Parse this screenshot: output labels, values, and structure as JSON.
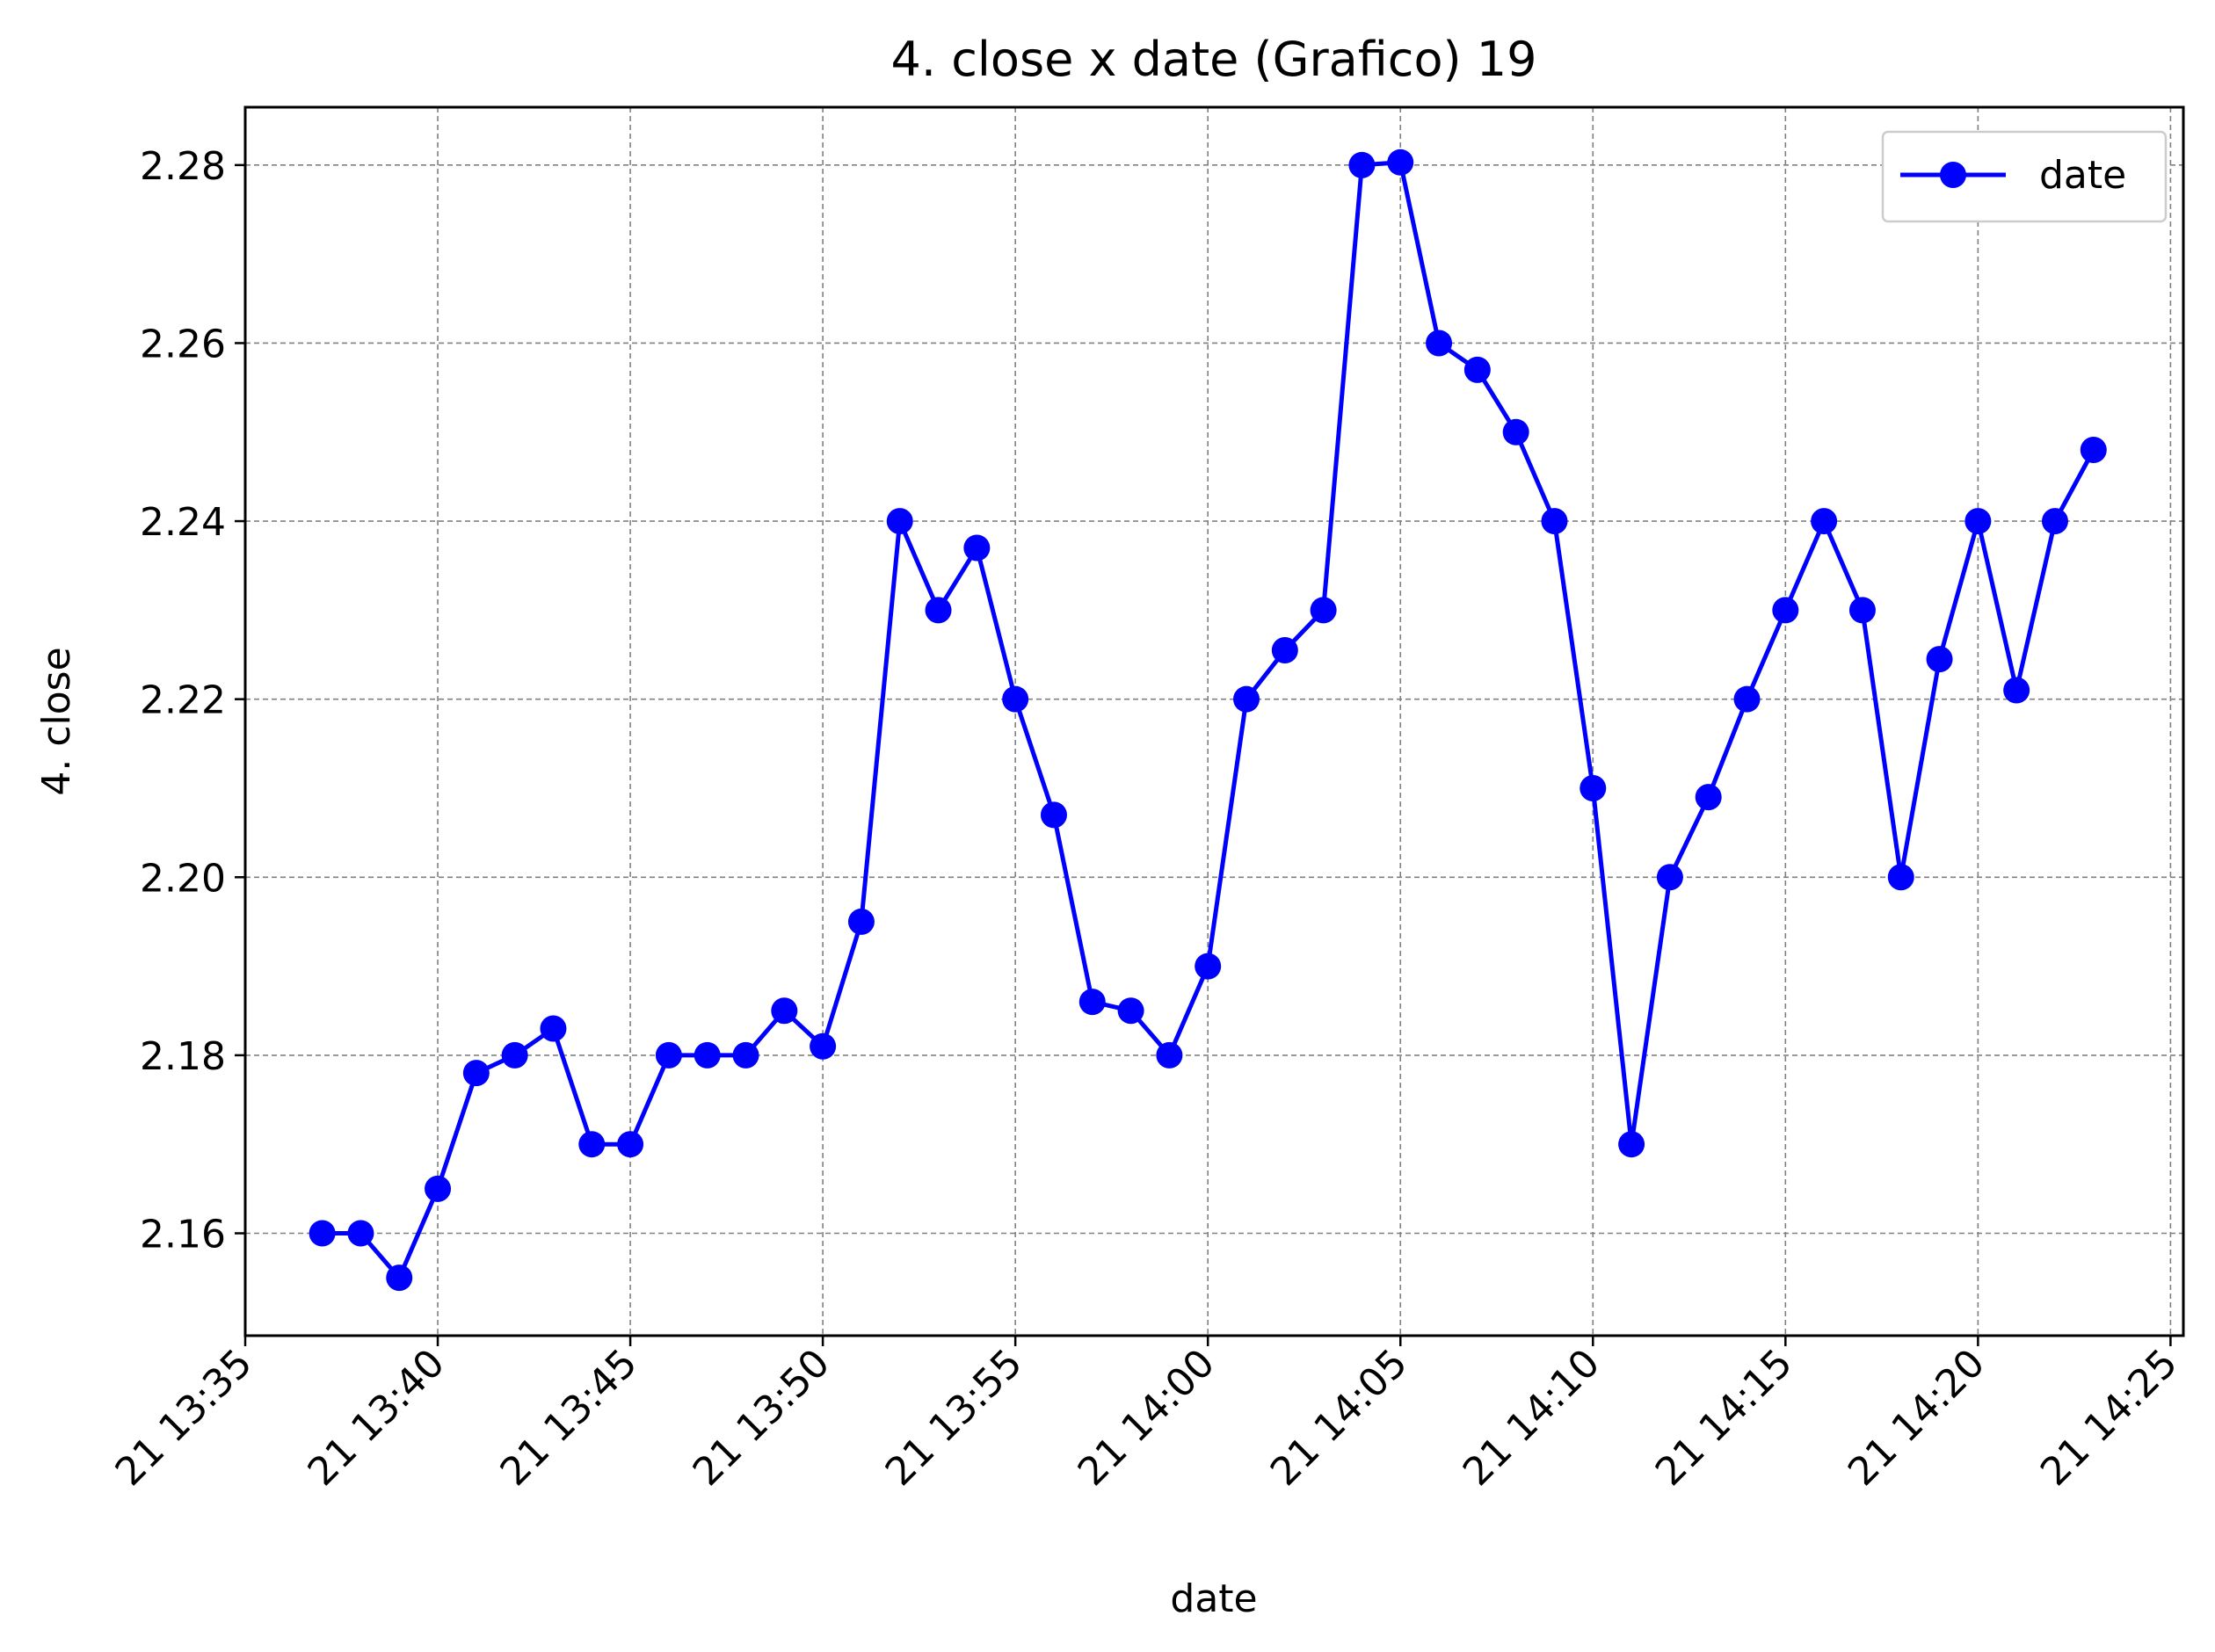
{
  "chart_data": {
    "type": "line",
    "title": "4. close x date (Grafico) 19",
    "xlabel": "date",
    "ylabel": "4. close",
    "x_ticks": [
      "21 13:35",
      "21 13:40",
      "21 13:45",
      "21 13:50",
      "21 13:55",
      "21 14:00",
      "21 14:05",
      "21 14:10",
      "21 14:15",
      "21 14:20",
      "21 14:25"
    ],
    "y_ticks": [
      "2.16",
      "2.18",
      "2.20",
      "2.22",
      "2.24",
      "2.26",
      "2.28"
    ],
    "xlim": [
      "13:35:00",
      "14:25:20"
    ],
    "ylim": [
      2.1485,
      2.2865
    ],
    "grid": true,
    "legend_position": "top-right",
    "series": [
      {
        "name": "date",
        "color": "#0000ff",
        "marker": "circle",
        "x": [
          "13:37",
          "13:38",
          "13:39",
          "13:40",
          "13:41",
          "13:42",
          "13:43",
          "13:44",
          "13:45",
          "13:46",
          "13:47",
          "13:48",
          "13:49",
          "13:50",
          "13:51",
          "13:52",
          "13:53",
          "13:54",
          "13:55",
          "13:56",
          "13:57",
          "13:58",
          "13:59",
          "14:00",
          "14:01",
          "14:02",
          "14:03",
          "14:04",
          "14:05",
          "14:06",
          "14:07",
          "14:08",
          "14:09",
          "14:10",
          "14:11",
          "14:12",
          "14:13",
          "14:14",
          "14:15",
          "14:16",
          "14:17",
          "14:18",
          "14:19",
          "14:20",
          "14:21",
          "14:22",
          "14:23"
        ],
        "values": [
          2.16,
          2.16,
          2.155,
          2.165,
          2.178,
          2.18,
          2.183,
          2.17,
          2.17,
          2.18,
          2.18,
          2.18,
          2.185,
          2.181,
          2.195,
          2.24,
          2.23,
          2.237,
          2.22,
          2.207,
          2.186,
          2.185,
          2.18,
          2.19,
          2.22,
          2.2255,
          2.23,
          2.28,
          2.2803,
          2.26,
          2.257,
          2.25,
          2.24,
          2.21,
          2.17,
          2.2,
          2.209,
          2.22,
          2.23,
          2.24,
          2.23,
          2.2,
          2.2245,
          2.24,
          2.221,
          2.24,
          2.248
        ]
      }
    ]
  }
}
